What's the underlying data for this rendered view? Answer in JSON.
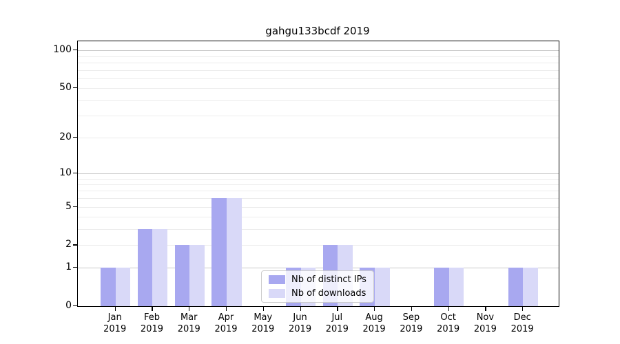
{
  "chart_data": {
    "type": "bar",
    "title": "gahgu133bcdf 2019",
    "months": [
      "Jan",
      "Feb",
      "Mar",
      "Apr",
      "May",
      "Jun",
      "Jul",
      "Aug",
      "Sep",
      "Oct",
      "Nov",
      "Dec"
    ],
    "year": "2019",
    "series": [
      {
        "name": "Nb of distinct IPs",
        "color": "#a8a8f0",
        "values": [
          1,
          3,
          2,
          6,
          0,
          1,
          2,
          1,
          0,
          1,
          0,
          1
        ]
      },
      {
        "name": "Nb of downloads",
        "color": "#d9d9f8",
        "values": [
          1,
          3,
          2,
          6,
          0,
          1,
          2,
          1,
          0,
          1,
          0,
          1
        ]
      }
    ],
    "y_scale": "log1p",
    "y_ticks": [
      0,
      1,
      2,
      5,
      10,
      20,
      50,
      100
    ],
    "ylim": [
      0,
      118
    ],
    "grid": {
      "major": [
        1,
        10,
        100
      ],
      "minor": [
        2,
        3,
        4,
        5,
        6,
        7,
        8,
        9,
        20,
        30,
        40,
        50,
        60,
        70,
        80,
        90
      ]
    },
    "legend_position": "lower center-left, overlapping Jun-Aug bars",
    "colors": {
      "grid_major": "#c9c9c9",
      "grid_minor": "#ececec",
      "axis": "#000000",
      "text": "#000000"
    }
  }
}
